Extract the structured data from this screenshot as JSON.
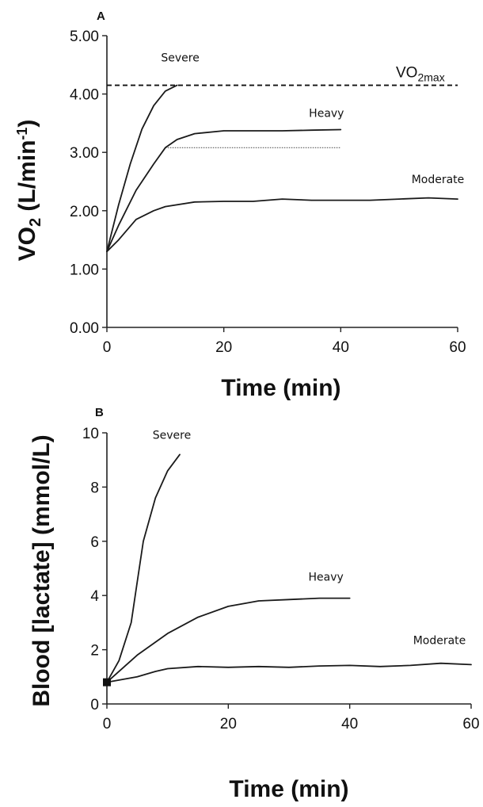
{
  "chart_data": [
    {
      "panel": "A",
      "type": "line",
      "xlabel": "Time (min)",
      "ylabel_main": "VO",
      "ylabel_sub": "2",
      "ylabel_unit_open": " (L/min",
      "ylabel_unit_sup": "-1",
      "ylabel_unit_close": ")",
      "xlim": [
        0,
        60
      ],
      "ylim": [
        0,
        5
      ],
      "xticks": [
        "0",
        "20",
        "40",
        "60"
      ],
      "yticks": [
        "0.00",
        "1.00",
        "2.00",
        "3.00",
        "4.00",
        "5.00"
      ],
      "series": [
        {
          "name": "Severe",
          "x": [
            0,
            2,
            4,
            6,
            8,
            10,
            12
          ],
          "y": [
            1.3,
            2.1,
            2.8,
            3.4,
            3.8,
            4.05,
            4.15
          ]
        },
        {
          "name": "Heavy",
          "x": [
            0,
            2,
            5,
            8,
            10,
            12,
            15,
            20,
            25,
            30,
            35,
            40
          ],
          "y": [
            1.3,
            1.75,
            2.35,
            2.8,
            3.08,
            3.22,
            3.32,
            3.37,
            3.37,
            3.37,
            3.38,
            3.39
          ]
        },
        {
          "name": "Moderate",
          "x": [
            0,
            2,
            5,
            8,
            10,
            15,
            20,
            25,
            30,
            35,
            40,
            45,
            50,
            55,
            60
          ],
          "y": [
            1.3,
            1.5,
            1.85,
            2.0,
            2.07,
            2.15,
            2.16,
            2.16,
            2.2,
            2.18,
            2.18,
            2.18,
            2.2,
            2.22,
            2.2
          ]
        }
      ],
      "reference_lines": [
        {
          "label_main": "VO",
          "label_sub": "2max",
          "y": 4.15,
          "x": [
            0,
            60
          ],
          "style": "dashed"
        },
        {
          "y": 3.08,
          "x": [
            10,
            40
          ],
          "style": "dotted"
        }
      ]
    },
    {
      "panel": "B",
      "type": "line",
      "xlabel": "Time (min)",
      "ylabel": "Blood [lactate] (mmol/L)",
      "xlim": [
        0,
        60
      ],
      "ylim": [
        0,
        10
      ],
      "xticks": [
        "0",
        "20",
        "40",
        "60"
      ],
      "yticks": [
        "0",
        "2",
        "4",
        "6",
        "8",
        "10"
      ],
      "series": [
        {
          "name": "Severe",
          "x": [
            0,
            2,
            4,
            5,
            6,
            8,
            10,
            12
          ],
          "y": [
            0.8,
            1.6,
            3.0,
            4.5,
            6.0,
            7.6,
            8.6,
            9.2
          ]
        },
        {
          "name": "Heavy",
          "x": [
            0,
            5,
            10,
            15,
            20,
            25,
            30,
            35,
            40
          ],
          "y": [
            0.8,
            1.8,
            2.6,
            3.2,
            3.6,
            3.8,
            3.85,
            3.9,
            3.9
          ]
        },
        {
          "name": "Moderate",
          "x": [
            0,
            5,
            8,
            10,
            15,
            20,
            25,
            30,
            35,
            40,
            45,
            50,
            55,
            60
          ],
          "y": [
            0.8,
            1.0,
            1.2,
            1.3,
            1.38,
            1.35,
            1.38,
            1.35,
            1.4,
            1.42,
            1.38,
            1.42,
            1.5,
            1.45
          ]
        }
      ],
      "start_marker": {
        "x": 0,
        "y": 0.8,
        "shape": "square"
      }
    }
  ]
}
